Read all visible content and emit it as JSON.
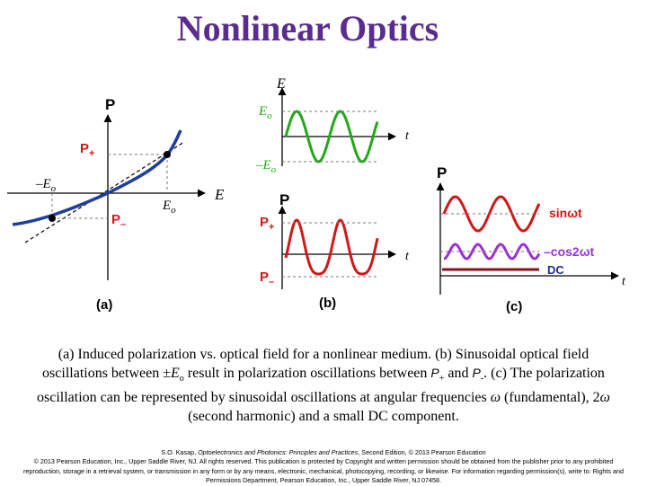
{
  "title": "Nonlinear Optics",
  "colors": {
    "title": "#5b2c8f",
    "green_wave": "#22a818",
    "red_wave": "#d01818",
    "purple_wave": "#9b30d9",
    "curve_blue": "#1f3f9f",
    "dc_line": "#8b1020"
  },
  "panel_a": {
    "y_axis_label": "P",
    "x_axis_label": "E",
    "p_plus": "P",
    "p_plus_sub": "+",
    "p_minus": "P",
    "p_minus_sub": "–",
    "neg_e": "–E",
    "neg_e_sub": "o",
    "pos_e": "E",
    "pos_e_sub": "o",
    "tag": "(a)"
  },
  "panel_b": {
    "e_axis_label": "E",
    "e0_label": "E",
    "e0_sub": "o",
    "neg_e0_label": "–E",
    "neg_e0_sub": "o",
    "t_label_top": "t",
    "p_axis_label": "P",
    "p_plus": "P",
    "p_plus_sub": "+",
    "p_minus": "P",
    "p_minus_sub": "–",
    "t_label_bottom": "t",
    "tag": "(b)"
  },
  "panel_c": {
    "p_axis_label": "P",
    "sin_label": "sinωt",
    "cos_label": "–cos2ωt",
    "dc_label": "DC",
    "t_label": "t",
    "tag": "(c)"
  },
  "caption": {
    "part1": "(a) Induced polarization vs. optical field for a nonlinear medium. (b) Sinusoidal optical field oscillations between ±",
    "e_symbol": "E",
    "e_sub": "o",
    "part2": " result in polarization oscillations between ",
    "p_plus": "P",
    "p_plus_sub": "+",
    "and_word": " and ",
    "p_minus": "P",
    "p_minus_sub": "-",
    "part3": ".  (c) The polarization oscillation can be represented by sinusoidal oscillations at angular frequencies ",
    "omega": "ω",
    "part4": "  (fundamental), 2",
    "omega2": "ω",
    "part5": "  (second harmonic) and a small DC component."
  },
  "credits": {
    "author": "S.O. Kasap, ",
    "book": "Optoelectronics and Photonics: Principles and Practices",
    "rest": ", Second Edition, © 2013 Pearson Education",
    "line2": "© 2013 Pearson Education, Inc., Upper Saddle River, NJ. All rights reserved. This publication is protected by Copyright and written permission should be obtained from the publisher prior to any prohibited reproduction, storage in a retrieval system, or transmission in any form or by any means, electronic, mechanical, photocopying, recording, or likewise. For information regarding permission(s), write to: Rights and Permissions Department, Pearson Education, Inc., Upper Saddle River, NJ 07458."
  }
}
